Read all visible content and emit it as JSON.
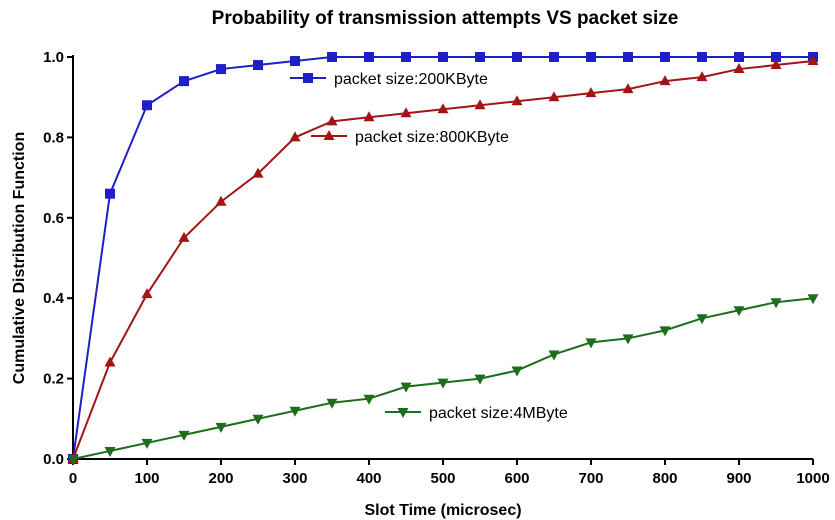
{
  "chart_data": {
    "type": "line",
    "title": "Probability of transmission attempts VS packet size",
    "xlabel": "Slot Time (microsec)",
    "ylabel": "Cumulative Distribution Function",
    "xlim": [
      0,
      1000
    ],
    "ylim": [
      0,
      1.0
    ],
    "xticks": [
      0,
      100,
      200,
      300,
      400,
      500,
      600,
      700,
      800,
      900,
      1000
    ],
    "yticks": [
      0.0,
      0.2,
      0.4,
      0.6,
      0.8,
      1.0
    ],
    "xtick_labels": [
      "0",
      "100",
      "200",
      "300",
      "400",
      "500",
      "600",
      "700",
      "800",
      "900",
      "1000"
    ],
    "ytick_labels": [
      "0.0",
      "0.2",
      "0.4",
      "0.6",
      "0.8",
      "1.0"
    ],
    "grid": false,
    "x": [
      0,
      50,
      100,
      150,
      200,
      250,
      300,
      350,
      400,
      450,
      500,
      550,
      600,
      650,
      700,
      750,
      800,
      850,
      900,
      950,
      1000
    ],
    "series": [
      {
        "name": "packet size:200KByte",
        "color": "#1f1fc8",
        "marker": "square",
        "values": [
          0.0,
          0.66,
          0.88,
          0.94,
          0.97,
          0.98,
          0.99,
          1.0,
          1.0,
          1.0,
          1.0,
          1.0,
          1.0,
          1.0,
          1.0,
          1.0,
          1.0,
          1.0,
          1.0,
          1.0,
          1.0
        ]
      },
      {
        "name": "packet size:800KByte",
        "color": "#a31515",
        "marker": "triangle-up",
        "values": [
          0.0,
          0.24,
          0.41,
          0.55,
          0.64,
          0.71,
          0.8,
          0.84,
          0.85,
          0.86,
          0.87,
          0.88,
          0.89,
          0.9,
          0.91,
          0.92,
          0.94,
          0.95,
          0.97,
          0.98,
          0.99
        ]
      },
      {
        "name": "packet size:4MByte",
        "color": "#1c6e1c",
        "marker": "triangle-down",
        "values": [
          0.0,
          0.02,
          0.04,
          0.06,
          0.08,
          0.1,
          0.12,
          0.14,
          0.15,
          0.18,
          0.19,
          0.2,
          0.22,
          0.26,
          0.29,
          0.3,
          0.32,
          0.35,
          0.37,
          0.39,
          0.4
        ]
      }
    ],
    "legend": "inline"
  }
}
